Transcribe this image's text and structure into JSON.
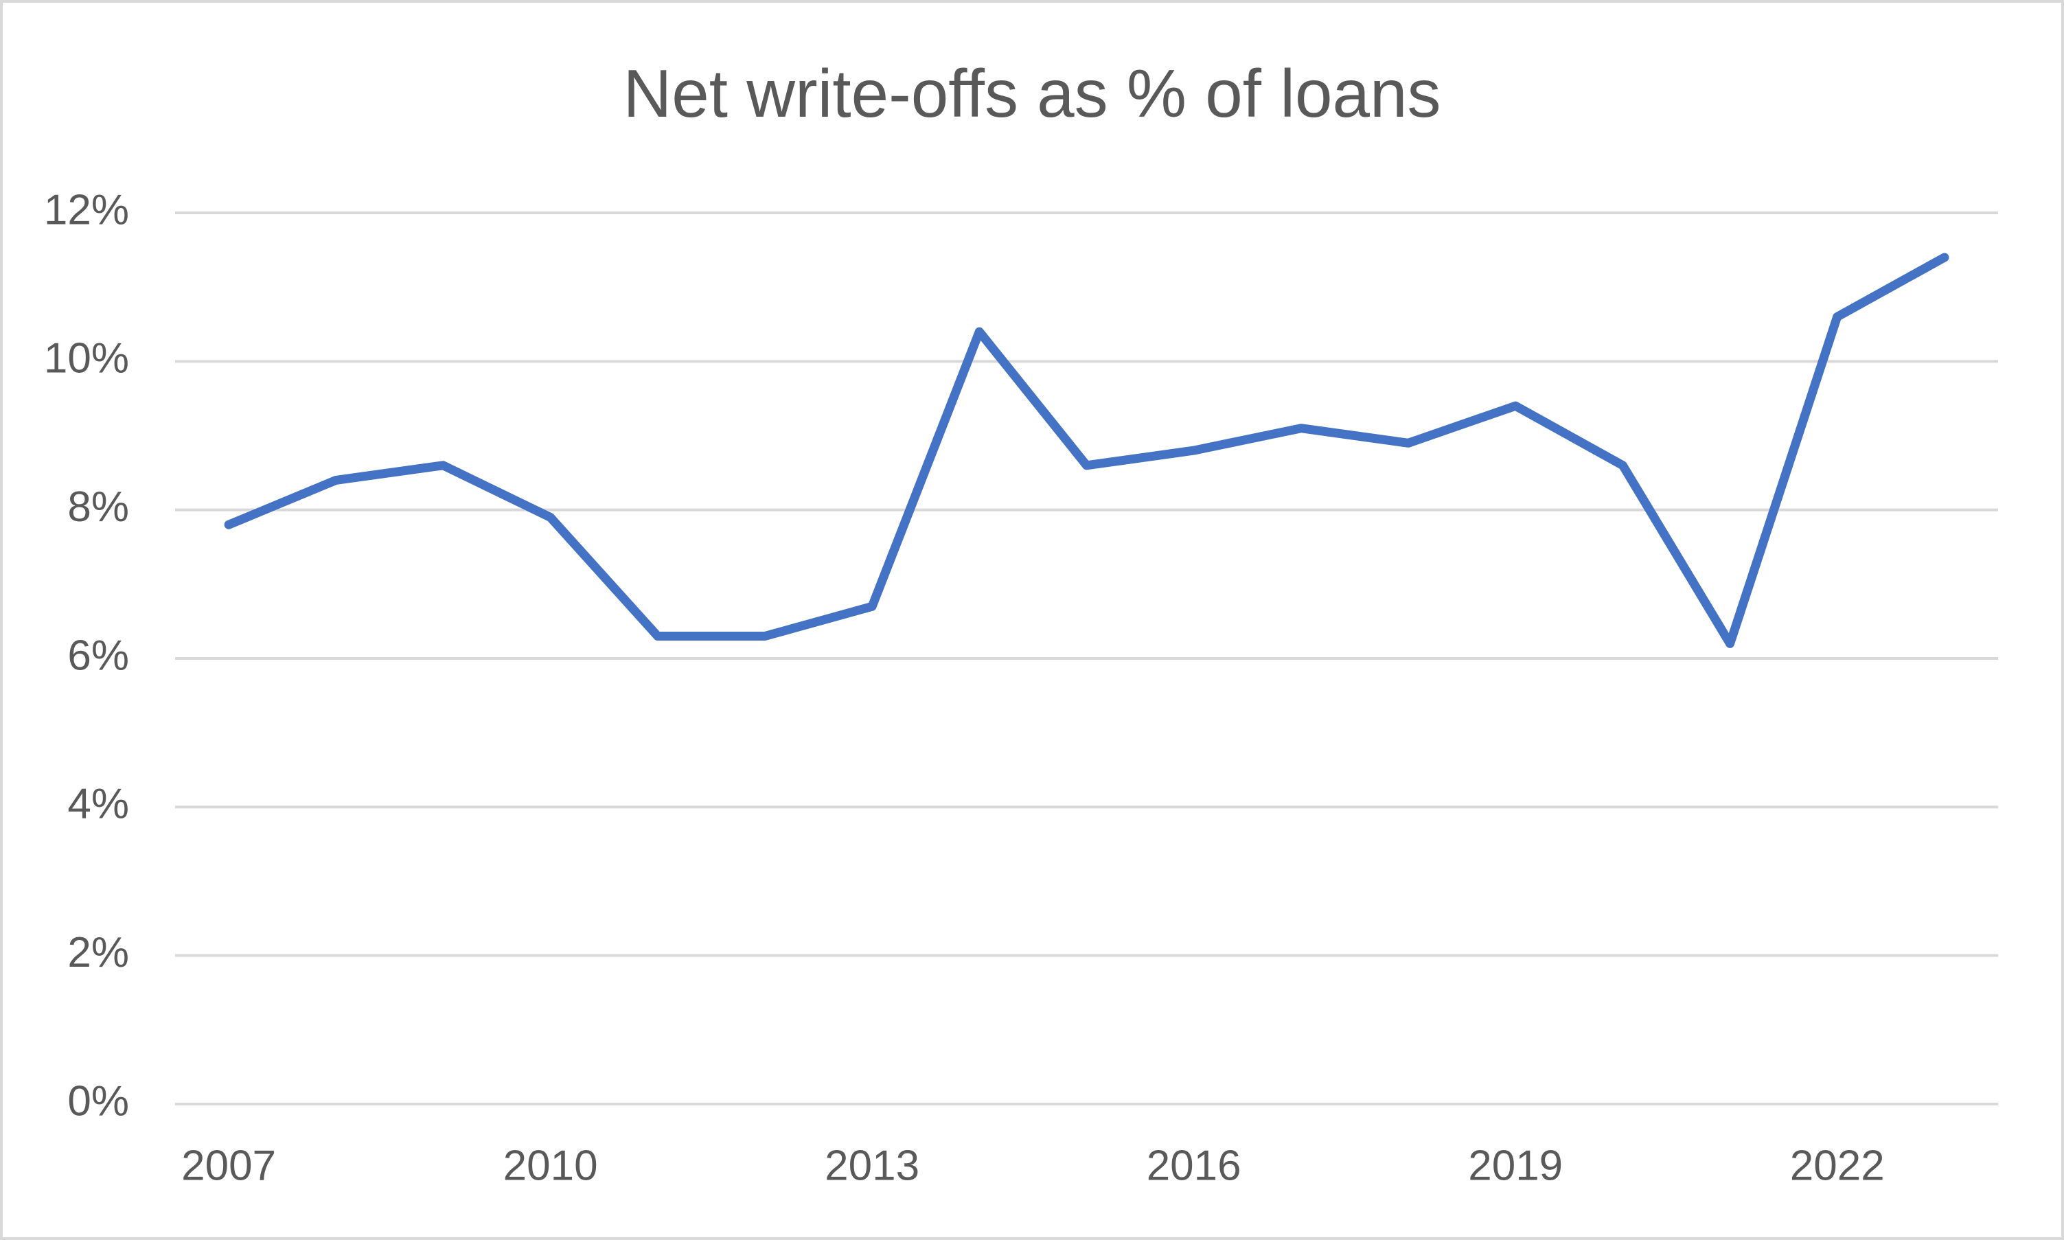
{
  "chart_data": {
    "type": "line",
    "title": "Net write-offs as % of loans",
    "categories": [
      "2007",
      null,
      null,
      "2010",
      null,
      null,
      "2013",
      null,
      null,
      "2016",
      null,
      null,
      "2019",
      null,
      null,
      "2022",
      null
    ],
    "values": [
      7.8,
      8.4,
      8.6,
      7.9,
      6.3,
      6.3,
      6.7,
      10.4,
      8.6,
      8.8,
      9.1,
      8.9,
      9.4,
      8.6,
      6.2,
      10.6,
      11.4
    ],
    "color": "#4472c4",
    "ylim": [
      0,
      12
    ],
    "yticks": [
      {
        "value": 0,
        "label": "0%"
      },
      {
        "value": 2,
        "label": "2%"
      },
      {
        "value": 4,
        "label": "4%"
      },
      {
        "value": 6,
        "label": "6%"
      },
      {
        "value": 8,
        "label": "8%"
      },
      {
        "value": 10,
        "label": "10%"
      },
      {
        "value": 12,
        "label": "12%"
      }
    ],
    "grid": true
  }
}
